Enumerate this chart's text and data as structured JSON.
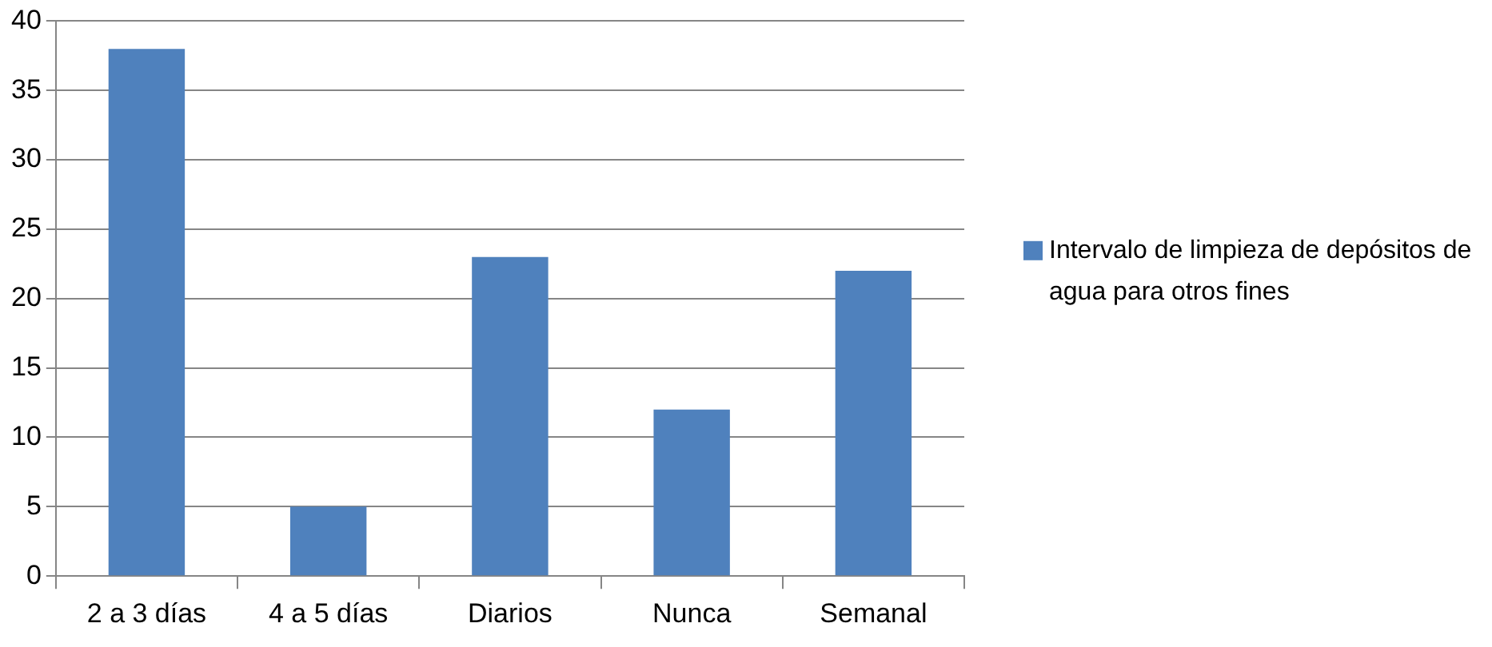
{
  "chart_data": {
    "type": "bar",
    "categories": [
      "2 a 3 días",
      "4 a 5 días",
      "Diarios",
      "Nunca",
      "Semanal"
    ],
    "series": [
      {
        "name": "Intervalo de limpieza de depósitos de agua para otros fines",
        "color": "#4f81bd",
        "values": [
          38,
          5,
          23,
          12,
          22
        ]
      }
    ],
    "ylim": [
      0,
      40
    ],
    "yticks": [
      0,
      5,
      10,
      15,
      20,
      25,
      30,
      35,
      40
    ],
    "grid": "y",
    "legend": "right"
  }
}
